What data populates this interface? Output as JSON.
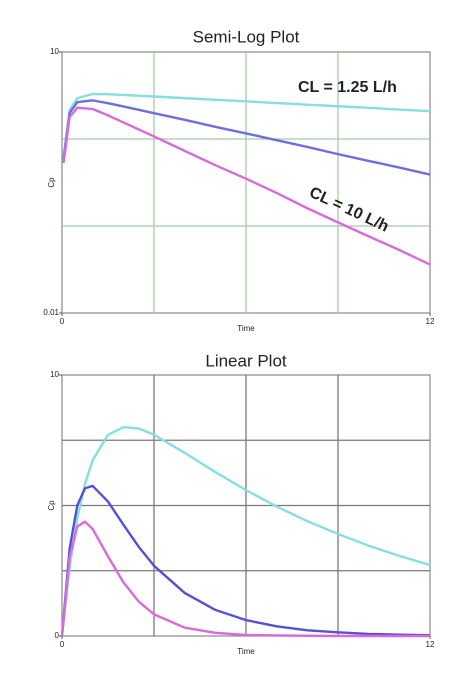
{
  "chart_data": [
    {
      "type": "line",
      "title": "Semi-Log Plot",
      "xlabel": "Time",
      "ylabel": "Cp",
      "yscale": "log",
      "xlim": [
        0,
        12
      ],
      "ylim": [
        0.01,
        10
      ],
      "xticks": [
        0,
        12
      ],
      "yticks": [
        0.01,
        10
      ],
      "xgrid": [
        3,
        6,
        9
      ],
      "ygrid": [
        0.1,
        1
      ],
      "grid_color": "#a3cca3",
      "x": [
        0.05,
        0.25,
        0.5,
        1,
        1.5,
        2,
        3,
        4,
        5,
        6,
        7,
        8,
        9,
        10,
        11,
        12
      ],
      "series": [
        {
          "color": "#86dede",
          "values": [
            0.63,
            2.17,
            2.95,
            3.29,
            3.27,
            3.21,
            3.08,
            2.95,
            2.82,
            2.71,
            2.59,
            2.48,
            2.38,
            2.28,
            2.18,
            2.09
          ]
        },
        {
          "color": "#6e6ee0",
          "values": [
            0.58,
            2.0,
            2.65,
            2.78,
            2.58,
            2.37,
            1.98,
            1.66,
            1.38,
            1.16,
            0.97,
            0.81,
            0.67,
            0.56,
            0.47,
            0.39
          ]
        },
        {
          "color": "#d96ad9",
          "values": [
            0.53,
            1.79,
            2.29,
            2.21,
            1.87,
            1.55,
            1.07,
            0.73,
            0.5,
            0.35,
            0.24,
            0.16,
            0.11,
            0.076,
            0.053,
            0.036
          ]
        }
      ],
      "annotations": [
        "CL = 1.25 L/h",
        "CL = 10 L/h"
      ]
    },
    {
      "type": "line",
      "title": "Linear Plot",
      "xlabel": "Time",
      "ylabel": "Cp",
      "xlim": [
        0,
        12
      ],
      "ylim": [
        0,
        10
      ],
      "xticks": [
        0,
        12
      ],
      "yticks": [
        0,
        10
      ],
      "xgrid": [
        3,
        6,
        9
      ],
      "ygrid": [
        2.5,
        5,
        7.5
      ],
      "grid_color": "#7a7a7a",
      "x": [
        0,
        0.25,
        0.5,
        0.75,
        1,
        1.5,
        2,
        2.5,
        3,
        4,
        5,
        6,
        7,
        8,
        9,
        10,
        11,
        12
      ],
      "series": [
        {
          "color": "#86dede",
          "values": [
            0,
            2.63,
            4.52,
            5.83,
            6.74,
            7.71,
            8.0,
            7.95,
            7.71,
            7.02,
            6.28,
            5.59,
            4.96,
            4.4,
            3.91,
            3.46,
            3.07,
            2.72
          ]
        },
        {
          "color": "#5252d6",
          "values": [
            0,
            3.36,
            5.01,
            5.66,
            5.75,
            5.15,
            4.27,
            3.42,
            2.69,
            1.65,
            1.0,
            0.61,
            0.37,
            0.22,
            0.14,
            0.08,
            0.05,
            0.03
          ]
        },
        {
          "color": "#d96ad9",
          "values": [
            0,
            3.03,
            4.2,
            4.38,
            4.1,
            3.05,
            2.06,
            1.32,
            0.83,
            0.32,
            0.12,
            0.04,
            0.02,
            0.01,
            0,
            0,
            0,
            0
          ]
        }
      ]
    }
  ]
}
